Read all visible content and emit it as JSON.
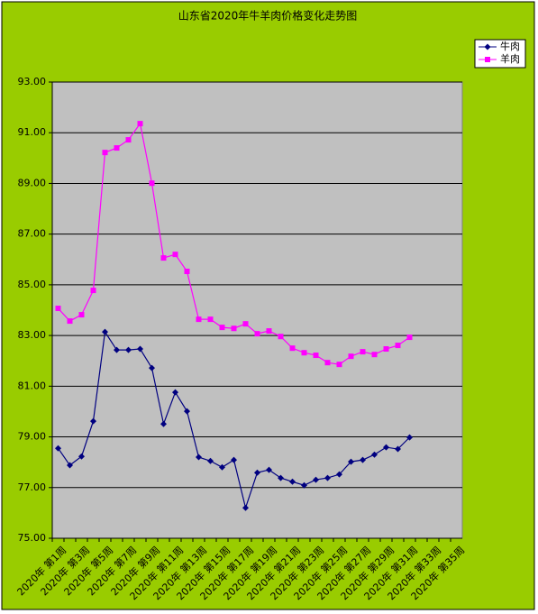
{
  "chart_data": {
    "type": "line",
    "title": "山东省2020年牛羊肉价格变化走势图",
    "categories": [
      "2020年 第1周",
      null,
      "2020年 第3周",
      null,
      "2020年 第5周",
      null,
      "2020年 第7周",
      null,
      "2020年 第9周",
      null,
      "2020年 第11周",
      null,
      "2020年 第13周",
      null,
      "2020年 第15周",
      null,
      "2020年 第17周",
      null,
      "2020年 第19周",
      null,
      "2020年 第21周",
      null,
      "2020年 第23周",
      null,
      "2020年 第25周",
      null,
      "2020年 第27周",
      null,
      "2020年 第29周",
      null,
      "2020年 第31周",
      null,
      "2020年 第33周",
      null,
      "2020年 第35周"
    ],
    "series": [
      {
        "name": "牛肉",
        "color": "#000080",
        "marker": "diamond",
        "values": [
          78.55,
          77.88,
          78.23,
          79.62,
          83.14,
          82.43,
          82.43,
          82.47,
          81.72,
          79.51,
          80.76,
          80.01,
          78.2,
          78.05,
          77.8,
          78.09,
          76.2,
          77.59,
          77.7,
          77.38,
          77.23,
          77.09,
          77.31,
          77.38,
          77.52,
          78.02,
          78.09,
          78.3,
          78.59,
          78.52,
          78.98,
          null,
          null,
          null,
          null
        ]
      },
      {
        "name": "羊肉",
        "color": "#ff00ff",
        "marker": "square",
        "values": [
          84.07,
          83.57,
          83.82,
          84.78,
          90.22,
          90.4,
          90.72,
          91.36,
          89.01,
          86.06,
          86.2,
          85.53,
          83.64,
          83.64,
          83.32,
          83.28,
          83.46,
          83.07,
          83.18,
          82.96,
          82.5,
          82.32,
          82.22,
          81.93,
          81.86,
          82.18,
          82.36,
          82.25,
          82.47,
          82.61,
          82.93,
          null,
          null,
          null,
          null
        ]
      }
    ],
    "ylim": [
      75,
      93
    ],
    "yticks": [
      {
        "value": 75,
        "label": "75.00"
      },
      {
        "value": 77,
        "label": "77.00"
      },
      {
        "value": 79,
        "label": "79.00"
      },
      {
        "value": 81,
        "label": "81.00"
      },
      {
        "value": 83,
        "label": "83.00"
      },
      {
        "value": 85,
        "label": "85.00"
      },
      {
        "value": 87,
        "label": "87.00"
      },
      {
        "value": 89,
        "label": "89.00"
      },
      {
        "value": 91,
        "label": "91.00"
      },
      {
        "value": 93,
        "label": "93.00"
      }
    ],
    "grid": true,
    "legend": "top-right",
    "background": "#99cc00",
    "plot_background": "#c0c0c0"
  }
}
